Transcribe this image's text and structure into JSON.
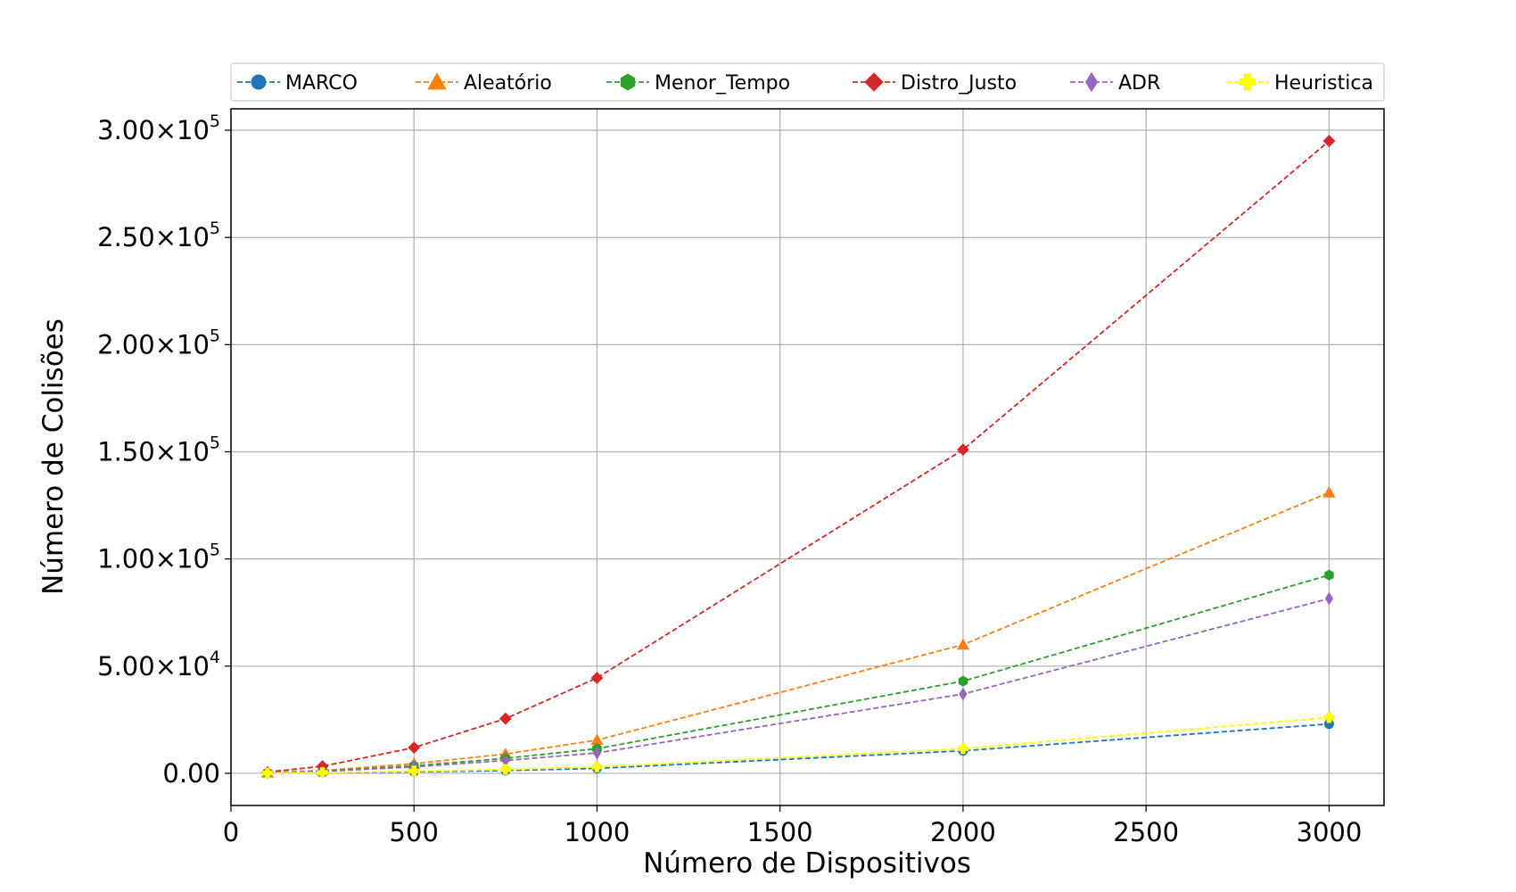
{
  "chart_data": {
    "type": "line",
    "xlabel": "Número de Dispositivos",
    "ylabel": "Número de Colisões",
    "xlim": [
      0,
      3150
    ],
    "ylim": [
      -15000,
      310000
    ],
    "x": [
      100,
      250,
      500,
      750,
      1000,
      2000,
      3000
    ],
    "x_ticks": [
      0,
      500,
      1000,
      1500,
      2000,
      2500,
      3000
    ],
    "y_ticks": [
      {
        "value": 0,
        "mant": "0.00",
        "exp": ""
      },
      {
        "value": 50000,
        "mant": "5.00×10",
        "exp": "4"
      },
      {
        "value": 100000,
        "mant": "1.00×10",
        "exp": "5"
      },
      {
        "value": 150000,
        "mant": "1.50×10",
        "exp": "5"
      },
      {
        "value": 200000,
        "mant": "2.00×10",
        "exp": "5"
      },
      {
        "value": 250000,
        "mant": "2.50×10",
        "exp": "5"
      },
      {
        "value": 300000,
        "mant": "3.00×10",
        "exp": "5"
      }
    ],
    "grid": true,
    "legend_position": "top",
    "series": [
      {
        "name": "MARCO",
        "color": "#1f77b4",
        "marker": "circle",
        "values": [
          100,
          250,
          700,
          1300,
          2300,
          10500,
          23000
        ]
      },
      {
        "name": "Aleatório",
        "color": "#ff7f0e",
        "marker": "triangle",
        "values": [
          300,
          1300,
          4500,
          9000,
          15500,
          60000,
          131000
        ]
      },
      {
        "name": "Menor_Tempo",
        "color": "#2ca02c",
        "marker": "hexagon",
        "values": [
          200,
          1000,
          3500,
          7000,
          11500,
          43000,
          92500
        ]
      },
      {
        "name": "Distro_Justo",
        "color": "#d62728",
        "marker": "diamond",
        "values": [
          600,
          3300,
          12000,
          25500,
          44500,
          151000,
          295000
        ]
      },
      {
        "name": "ADR",
        "color": "#9467bd",
        "marker": "thin-diamond",
        "values": [
          200,
          900,
          3000,
          6000,
          9500,
          37000,
          81500
        ]
      },
      {
        "name": "Heuristica",
        "color": "#ffff00",
        "marker": "plus",
        "values": [
          100,
          300,
          1000,
          1800,
          3000,
          11500,
          26000
        ]
      }
    ]
  }
}
